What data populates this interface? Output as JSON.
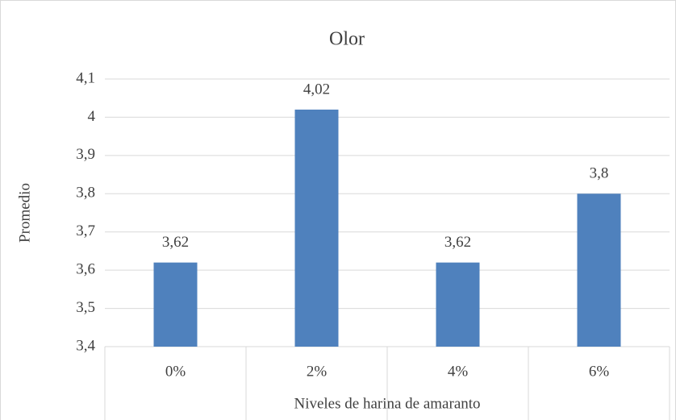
{
  "chart_data": {
    "type": "bar",
    "title": "Olor",
    "y_label": "Promedio",
    "x_label": "Niveles de harina de amaranto",
    "categories": [
      "0%",
      "2%",
      "4%",
      "6%"
    ],
    "values": [
      3.62,
      4.02,
      3.62,
      3.8
    ],
    "value_labels": [
      "3,62",
      "4,02",
      "3,62",
      "3,8"
    ],
    "color": "#4f81bd",
    "ylim": [
      3.4,
      4.1
    ],
    "yticks": [
      {
        "value": 3.4,
        "label": "3,4"
      },
      {
        "value": 3.5,
        "label": "3,5"
      },
      {
        "value": 3.6,
        "label": "3,6"
      },
      {
        "value": 3.7,
        "label": "3,7"
      },
      {
        "value": 3.8,
        "label": "3,8"
      },
      {
        "value": 3.9,
        "label": "3,9"
      },
      4,
      {
        "value": 4.1,
        "label": "4,1"
      }
    ],
    "grid": true
  }
}
